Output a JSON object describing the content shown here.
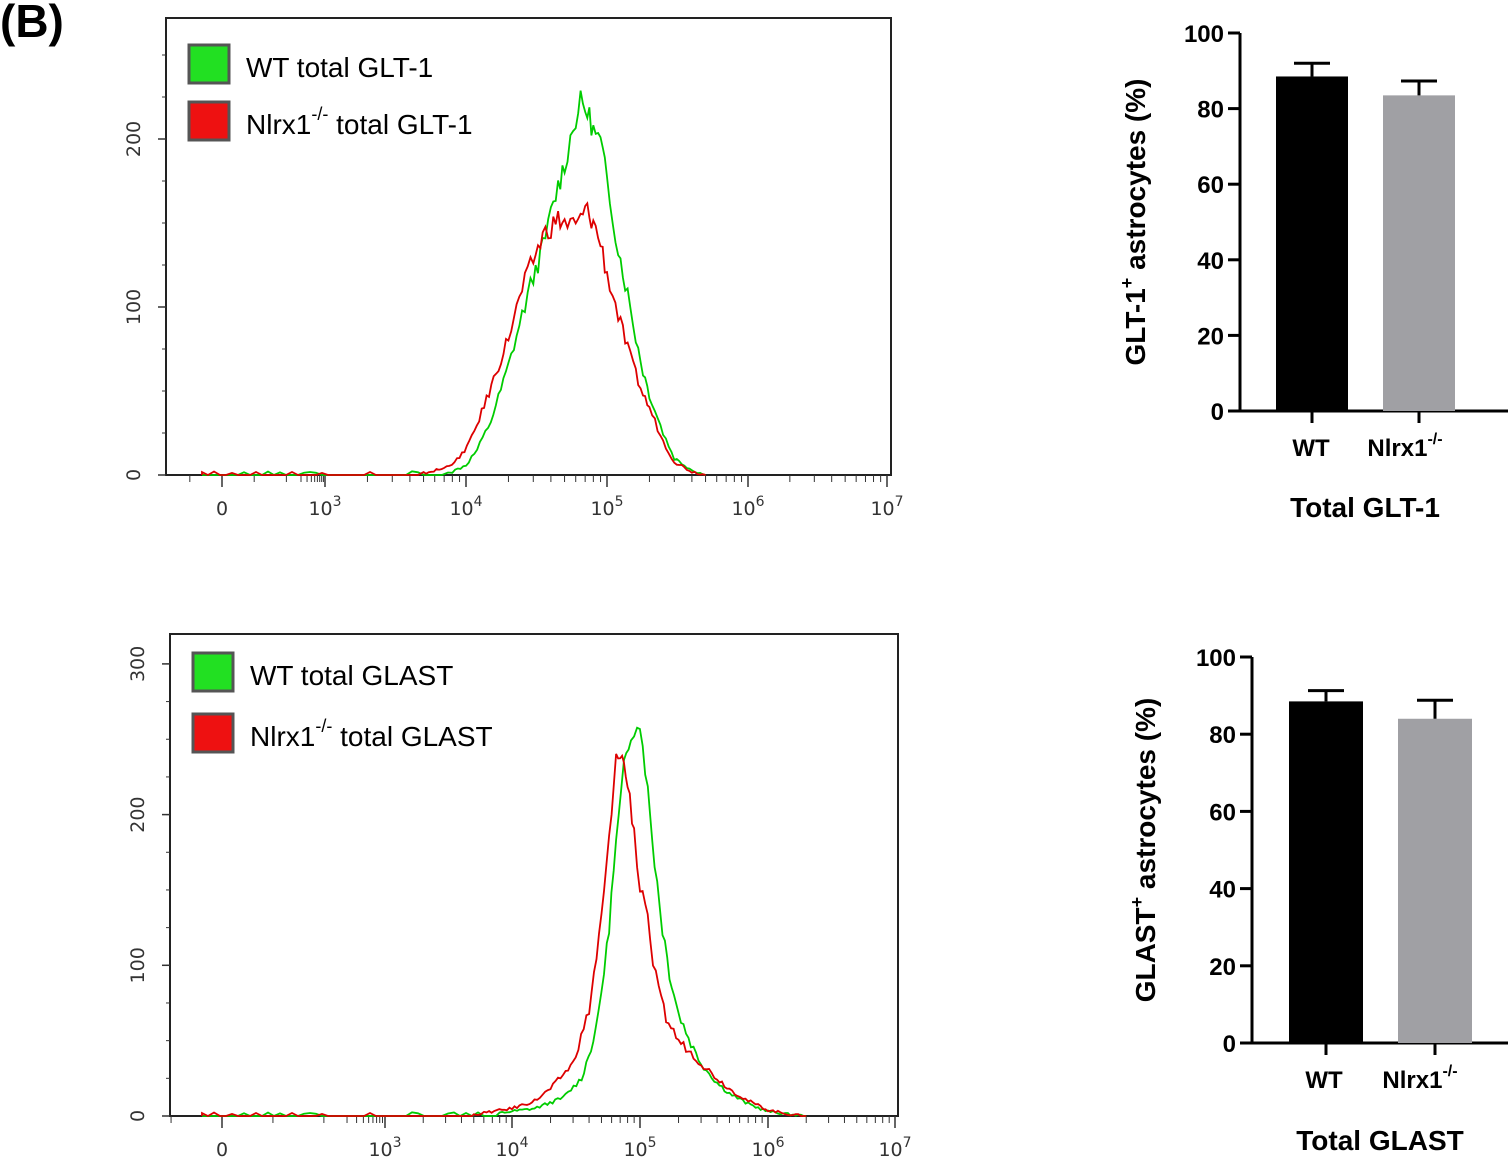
{
  "panel_label": "(B)",
  "chart_data": [
    {
      "type": "line",
      "name": "GLT-1 histogram",
      "xscale": "biexponential",
      "x_tick_labels": [
        "0",
        "10^3",
        "10^4",
        "10^5",
        "10^6",
        "10^7"
      ],
      "y_tick_labels": [
        "0",
        "100",
        "200"
      ],
      "ylim": [
        0,
        275
      ],
      "legend": "top-left",
      "series": [
        {
          "name": "WT total GLT-1",
          "color": "#00cc00",
          "points": [
            [
              8000,
              2
            ],
            [
              10000,
              6
            ],
            [
              12000,
              15
            ],
            [
              15000,
              32
            ],
            [
              20000,
              65
            ],
            [
              25000,
              95
            ],
            [
              30000,
              118
            ],
            [
              35000,
              135
            ],
            [
              40000,
              155
            ],
            [
              45000,
              172
            ],
            [
              50000,
              185
            ],
            [
              55000,
              200
            ],
            [
              60000,
              212
            ],
            [
              65000,
              222
            ],
            [
              70000,
              218
            ],
            [
              75000,
              213
            ],
            [
              80000,
              205
            ],
            [
              90000,
              198
            ],
            [
              100000,
              175
            ],
            [
              110000,
              155
            ],
            [
              120000,
              135
            ],
            [
              140000,
              108
            ],
            [
              160000,
              82
            ],
            [
              180000,
              62
            ],
            [
              200000,
              48
            ],
            [
              250000,
              25
            ],
            [
              300000,
              10
            ],
            [
              400000,
              3
            ],
            [
              500000,
              0
            ]
          ]
        },
        {
          "name": "Nlrx1-/- total GLT-1",
          "color": "#dd0000",
          "points": [
            [
              5000,
              1
            ],
            [
              7000,
              4
            ],
            [
              9000,
              10
            ],
            [
              11000,
              22
            ],
            [
              14000,
              45
            ],
            [
              17000,
              65
            ],
            [
              20000,
              82
            ],
            [
              25000,
              110
            ],
            [
              30000,
              128
            ],
            [
              35000,
              142
            ],
            [
              40000,
              148
            ],
            [
              45000,
              152
            ],
            [
              50000,
              150
            ],
            [
              55000,
              149
            ],
            [
              60000,
              148
            ],
            [
              65000,
              152
            ],
            [
              70000,
              158
            ],
            [
              75000,
              155
            ],
            [
              80000,
              150
            ],
            [
              90000,
              138
            ],
            [
              100000,
              120
            ],
            [
              120000,
              95
            ],
            [
              140000,
              75
            ],
            [
              160000,
              60
            ],
            [
              180000,
              48
            ],
            [
              200000,
              40
            ],
            [
              250000,
              20
            ],
            [
              300000,
              8
            ],
            [
              400000,
              2
            ],
            [
              500000,
              0
            ]
          ]
        }
      ]
    },
    {
      "type": "bar",
      "name": "GLT-1 percentages",
      "categories": [
        "WT",
        "Nlrx1"
      ],
      "category_superscripts": [
        "",
        "-/-"
      ],
      "values": [
        88.5,
        83.5
      ],
      "errors": [
        3.5,
        3.8
      ],
      "colors": [
        "#000000",
        "#a0a0a4"
      ],
      "xlabel": "Total GLT-1",
      "ylabel_main": "GLT-1",
      "ylabel_sup": "+",
      "ylabel_rest": " astrocytes (%)",
      "ylim": [
        0,
        100
      ],
      "yticks": [
        "0",
        "20",
        "40",
        "60",
        "80",
        "100"
      ]
    },
    {
      "type": "line",
      "name": "GLAST histogram",
      "xscale": "biexponential",
      "x_tick_labels": [
        "0",
        "10^3",
        "10^4",
        "10^5",
        "10^6",
        "10^7"
      ],
      "y_tick_labels": [
        "0",
        "100",
        "200",
        "300"
      ],
      "ylim": [
        0,
        320
      ],
      "legend": "top-left",
      "series": [
        {
          "name": "WT total GLAST",
          "color": "#00cc00",
          "points": [
            [
              8000,
              2
            ],
            [
              15000,
              5
            ],
            [
              25000,
              12
            ],
            [
              35000,
              25
            ],
            [
              45000,
              55
            ],
            [
              55000,
              110
            ],
            [
              65000,
              180
            ],
            [
              75000,
              230
            ],
            [
              85000,
              255
            ],
            [
              95000,
              262
            ],
            [
              105000,
              250
            ],
            [
              115000,
              215
            ],
            [
              130000,
              170
            ],
            [
              150000,
              125
            ],
            [
              170000,
              95
            ],
            [
              200000,
              68
            ],
            [
              250000,
              48
            ],
            [
              300000,
              35
            ],
            [
              400000,
              22
            ],
            [
              500000,
              15
            ],
            [
              700000,
              8
            ],
            [
              1000000,
              3
            ],
            [
              1500000,
              1
            ],
            [
              2000000,
              0
            ]
          ]
        },
        {
          "name": "Nlrx1-/- total GLAST",
          "color": "#dd0000",
          "points": [
            [
              5000,
              1
            ],
            [
              10000,
              5
            ],
            [
              15000,
              10
            ],
            [
              20000,
              18
            ],
            [
              30000,
              35
            ],
            [
              40000,
              70
            ],
            [
              50000,
              130
            ],
            [
              60000,
              200
            ],
            [
              65000,
              235
            ],
            [
              70000,
              243
            ],
            [
              75000,
              232
            ],
            [
              80000,
              220
            ],
            [
              90000,
              190
            ],
            [
              100000,
              150
            ],
            [
              110000,
              145
            ],
            [
              120000,
              112
            ],
            [
              140000,
              82
            ],
            [
              160000,
              65
            ],
            [
              200000,
              50
            ],
            [
              250000,
              42
            ],
            [
              300000,
              35
            ],
            [
              400000,
              25
            ],
            [
              500000,
              18
            ],
            [
              700000,
              10
            ],
            [
              1000000,
              4
            ],
            [
              1500000,
              1
            ],
            [
              2000000,
              0
            ]
          ]
        }
      ]
    },
    {
      "type": "bar",
      "name": "GLAST percentages",
      "categories": [
        "WT",
        "Nlrx1"
      ],
      "category_superscripts": [
        "",
        "-/-"
      ],
      "values": [
        88.5,
        84
      ],
      "errors": [
        2.8,
        4.8
      ],
      "colors": [
        "#000000",
        "#a0a0a4"
      ],
      "xlabel": "Total GLAST",
      "ylabel_main": "GLAST",
      "ylabel_sup": "+",
      "ylabel_rest": " astrocytes (%)",
      "ylim": [
        0,
        100
      ],
      "yticks": [
        "0",
        "20",
        "40",
        "60",
        "80",
        "100"
      ]
    }
  ]
}
